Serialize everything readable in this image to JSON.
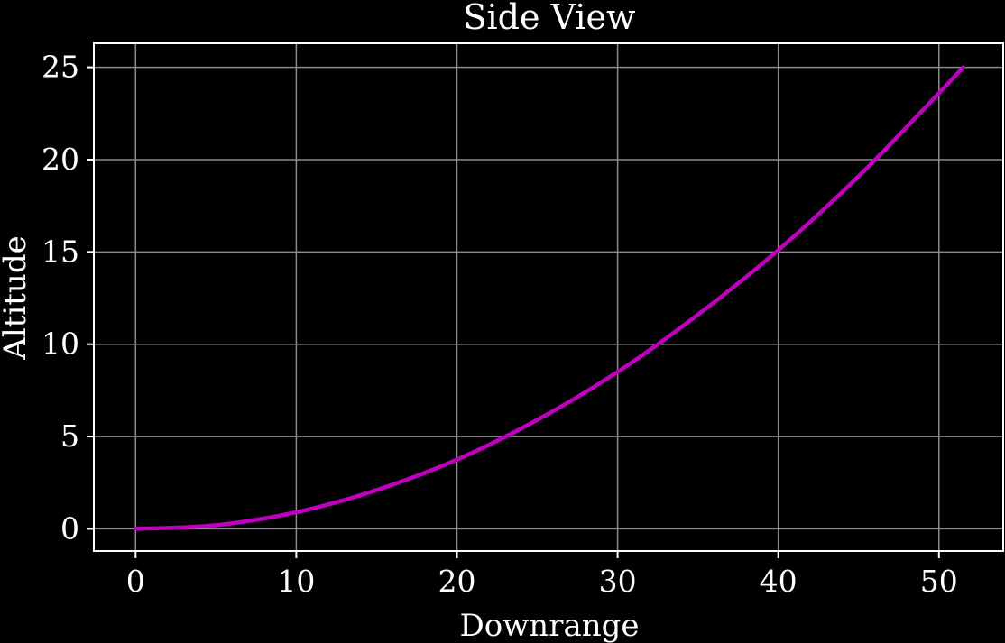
{
  "chart_data": {
    "type": "line",
    "title": "Side View",
    "xlabel": "Downrange",
    "ylabel": "Altitude",
    "xlim": [
      -2.6,
      54.0
    ],
    "ylim": [
      -1.2,
      26.3
    ],
    "xticks": [
      0,
      10,
      20,
      30,
      40,
      50
    ],
    "yticks": [
      0,
      5,
      10,
      15,
      20,
      25
    ],
    "xtick_labels": [
      "0",
      "10",
      "20",
      "30",
      "40",
      "50"
    ],
    "ytick_labels": [
      "0",
      "5",
      "10",
      "15",
      "20",
      "25"
    ],
    "grid": true,
    "colors": {
      "background": "#000000",
      "axes": "#ffffff",
      "grid": "#8c8c8c",
      "line": "#bf00bf"
    },
    "series": [
      {
        "x": [
          0,
          5,
          10,
          15,
          20,
          25,
          30,
          35,
          40,
          45,
          50,
          51.5
        ],
        "y": [
          0,
          0.2,
          0.9,
          2.1,
          3.75,
          5.9,
          8.5,
          11.6,
          15.1,
          19.1,
          23.6,
          25.0
        ]
      }
    ]
  }
}
